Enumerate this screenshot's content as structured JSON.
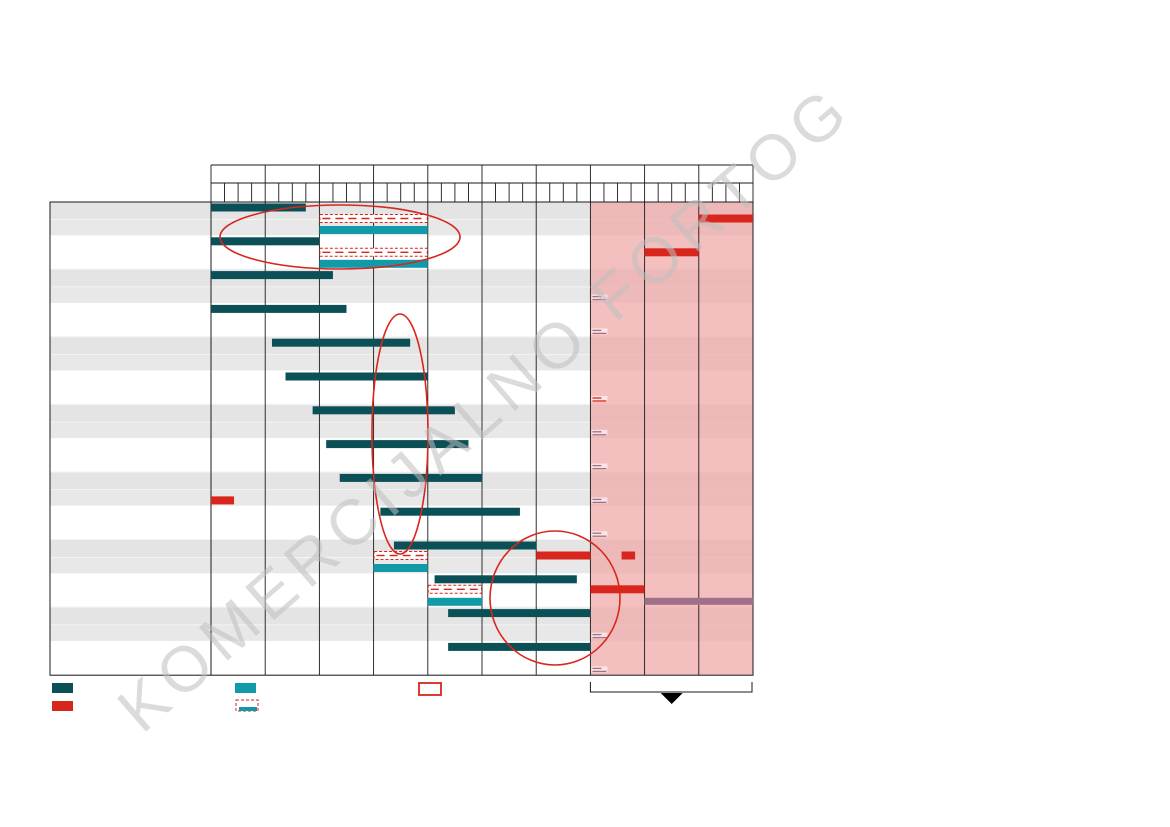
{
  "watermark": "KOMERCIJALNO FORTOG",
  "colors": {
    "plan_bar": "#0b4f57",
    "actual_bar": "#129aa8",
    "delay_bar": "#d8261c",
    "outlined_dashed": "#d8261c",
    "forecast_bar": "#a06f8a",
    "forecast_zone": "#f0a8a6",
    "row_band": "#e4e4e4",
    "grid_line": "#1a1a1a",
    "highlight_ellipse": "#d8261c"
  },
  "timeline": {
    "periods": 10,
    "subdivisions_per_period": 4,
    "forecast_from_period": 7
  },
  "rows": [
    {
      "bars": [
        {
          "kind": "plan",
          "start": 0,
          "end": 7
        },
        {
          "kind": "dashed",
          "start": 8,
          "end": 16,
          "lane": "top"
        },
        {
          "kind": "actual",
          "start": 8,
          "end": 16,
          "lane": "bottom"
        },
        {
          "kind": "delay",
          "start": 36,
          "end": 40,
          "lane": "top"
        }
      ],
      "marker": null
    },
    {
      "bars": [
        {
          "kind": "plan",
          "start": 0,
          "end": 8
        },
        {
          "kind": "dashed",
          "start": 8,
          "end": 16,
          "lane": "top"
        },
        {
          "kind": "actual",
          "start": 8,
          "end": 16,
          "lane": "bottom"
        },
        {
          "kind": "delay",
          "start": 32,
          "end": 36,
          "lane": "top"
        }
      ],
      "marker": null
    },
    {
      "bars": [
        {
          "kind": "plan",
          "start": 0,
          "end": 9
        }
      ],
      "marker": "small"
    },
    {
      "bars": [
        {
          "kind": "plan",
          "start": 0,
          "end": 10
        }
      ],
      "marker": "small"
    },
    {
      "bars": [
        {
          "kind": "plan",
          "start": 4.5,
          "end": 14.7
        }
      ],
      "marker": null
    },
    {
      "bars": [
        {
          "kind": "plan",
          "start": 5.5,
          "end": 16
        }
      ],
      "marker": "red-small"
    },
    {
      "bars": [
        {
          "kind": "plan",
          "start": 7.5,
          "end": 18
        }
      ],
      "marker": "small"
    },
    {
      "bars": [
        {
          "kind": "plan",
          "start": 8.5,
          "end": 19
        }
      ],
      "marker": "small"
    },
    {
      "bars": [
        {
          "kind": "plan",
          "start": 9.5,
          "end": 20
        },
        {
          "kind": "delay",
          "start": 0,
          "end": 1.7,
          "lane": "bottom"
        }
      ],
      "marker": "small"
    },
    {
      "bars": [
        {
          "kind": "plan",
          "start": 12.5,
          "end": 22.8
        }
      ],
      "marker": "small"
    },
    {
      "bars": [
        {
          "kind": "plan",
          "start": 13.5,
          "end": 24
        },
        {
          "kind": "dashed",
          "start": 12,
          "end": 16,
          "lane": "bottom-top"
        },
        {
          "kind": "actual",
          "start": 12,
          "end": 16,
          "lane": "bottom"
        },
        {
          "kind": "delay",
          "start": 24,
          "end": 28,
          "lane": "bottom-top"
        },
        {
          "kind": "delay",
          "start": 30.3,
          "end": 31.3,
          "lane": "bottom-top"
        }
      ],
      "marker": null
    },
    {
      "bars": [
        {
          "kind": "plan",
          "start": 16.5,
          "end": 27
        },
        {
          "kind": "dashed",
          "start": 16,
          "end": 20,
          "lane": "bottom-top"
        },
        {
          "kind": "actual",
          "start": 16,
          "end": 20,
          "lane": "bottom"
        },
        {
          "kind": "delay",
          "start": 28,
          "end": 32,
          "lane": "bottom-top"
        },
        {
          "kind": "forecast",
          "start": 32,
          "end": 40,
          "lane": "bottom"
        }
      ],
      "marker": null
    },
    {
      "bars": [
        {
          "kind": "plan",
          "start": 17.5,
          "end": 28
        }
      ],
      "marker": "small"
    },
    {
      "bars": [
        {
          "kind": "plan",
          "start": 17.5,
          "end": 28
        }
      ],
      "marker": "small"
    }
  ],
  "highlights": [
    {
      "cx": 340,
      "cy": 237,
      "rx": 120,
      "ry": 32
    },
    {
      "cx": 400,
      "cy": 434,
      "rx": 28,
      "ry": 120
    },
    {
      "cx": 555,
      "cy": 598,
      "rx": 65,
      "ry": 67
    }
  ],
  "legend": {
    "items": [
      {
        "kind": "plan"
      },
      {
        "kind": "delay"
      },
      {
        "kind": "actual"
      },
      {
        "kind": "dashed"
      },
      {
        "kind": "outline"
      }
    ]
  }
}
